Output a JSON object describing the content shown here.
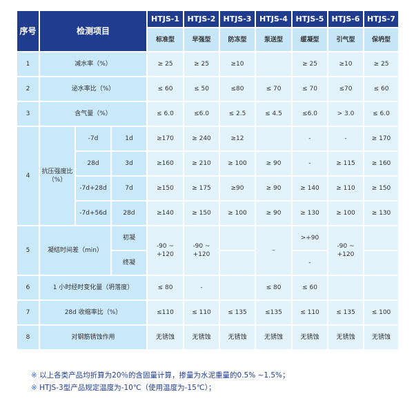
{
  "header": {
    "no": "序号",
    "item": "检测项目",
    "products": [
      {
        "code": "HTJS-1",
        "type": "标准型"
      },
      {
        "code": "HTJS-2",
        "type": "早强型"
      },
      {
        "code": "HTJS-3",
        "type": "防冻型"
      },
      {
        "code": "HTJS-4",
        "type": "泵送型"
      },
      {
        "code": "HTJS-5",
        "type": "缓凝型"
      },
      {
        "code": "HTJS-6",
        "type": "引气型"
      },
      {
        "code": "HTJS-7",
        "type": "保坍型"
      }
    ]
  },
  "rows_top": [
    {
      "no": "1",
      "label": "减水率（%）",
      "values": [
        "≥ 25",
        "≥ 25",
        "≥10",
        "",
        "≥ 25",
        "≥10",
        "≥ 25"
      ]
    },
    {
      "no": "2",
      "label": "泌水率比（%）",
      "values": [
        "≤ 60",
        "≤ 50",
        "≤80",
        "≤ 70",
        "≤ 70",
        "≤70",
        "≤ 60"
      ]
    },
    {
      "no": "3",
      "label": "含气量（%）",
      "values": [
        "≤ 6.0",
        "≤6.0",
        "≤ 2.5",
        "≤ 4.5",
        "≤6.0",
        "> 3.0",
        "≤ 6.0"
      ]
    }
  ],
  "row4": {
    "no": "4",
    "label": "抗压强度比（%）",
    "sub": [
      {
        "a": "-7d",
        "b": "1d",
        "values": [
          "≥170",
          "≥ 240",
          "≥12",
          "",
          "-",
          "-",
          "≥ 170"
        ]
      },
      {
        "a": "28d",
        "b": "3d",
        "values": [
          "≥160",
          "≥ 210",
          "≥ 100",
          "≥ 90",
          "-",
          "≥ 115",
          "≥ 160"
        ]
      },
      {
        "a": "-7d+28d",
        "b": "7d",
        "values": [
          "≥150",
          "≥ 175",
          "≥90",
          "≥ 90",
          "≥ 140",
          "≥ 110",
          "≥ 150"
        ]
      },
      {
        "a": "-7d+56d",
        "b": "28d",
        "values": [
          "≥140",
          "≥ 150",
          "≥ 100",
          "≥ 90",
          "≥ 130",
          "≥ 100",
          "≥ 130"
        ]
      }
    ]
  },
  "row5": {
    "no": "5",
    "label": "凝结时间差（min）",
    "initial": "初凝",
    "final": "终凝",
    "htjs1": "-90 ~ +120",
    "htjs2": "-90 ~ +120",
    "htjs4": "–",
    "htjs5_initial": ">+90",
    "htjs5_final": "-",
    "htjs6": "-90 ~ +120"
  },
  "rows_bottom": [
    {
      "no": "6",
      "label": "1 小时经时变化量（坍落度）",
      "values": [
        "≤ 80",
        "-",
        "",
        "≤ 80",
        "≤ 60",
        "",
        ""
      ]
    },
    {
      "no": "7",
      "label": "28d 收缩率比（%）",
      "values": [
        "≤110",
        "≤ 110",
        "≤ 135",
        "≤135",
        "≤ 110",
        "≤ 135",
        "≤ 100"
      ]
    },
    {
      "no": "8",
      "label": "对钢筋锈蚀作用",
      "values": [
        "无锈蚀",
        "无锈蚀",
        "无锈蚀",
        "无锈蚀",
        "无锈蚀",
        "无锈蚀",
        "无锈蚀"
      ]
    }
  ],
  "notes": [
    {
      "mark": "※",
      "text": "以上各类产品均折算为20％的含固量计算，掺量为水泥重量的0.5% ~1.5%；"
    },
    {
      "mark": "※",
      "text": "HTJS-3型产品规定温度为-10℃（使用温度为-15℃）；"
    }
  ],
  "colors": {
    "header": "#1f3c8f",
    "label_cell": "#c9e8f9",
    "value_cell": "#e2f3fc",
    "note_text": "#1f3c8f"
  }
}
